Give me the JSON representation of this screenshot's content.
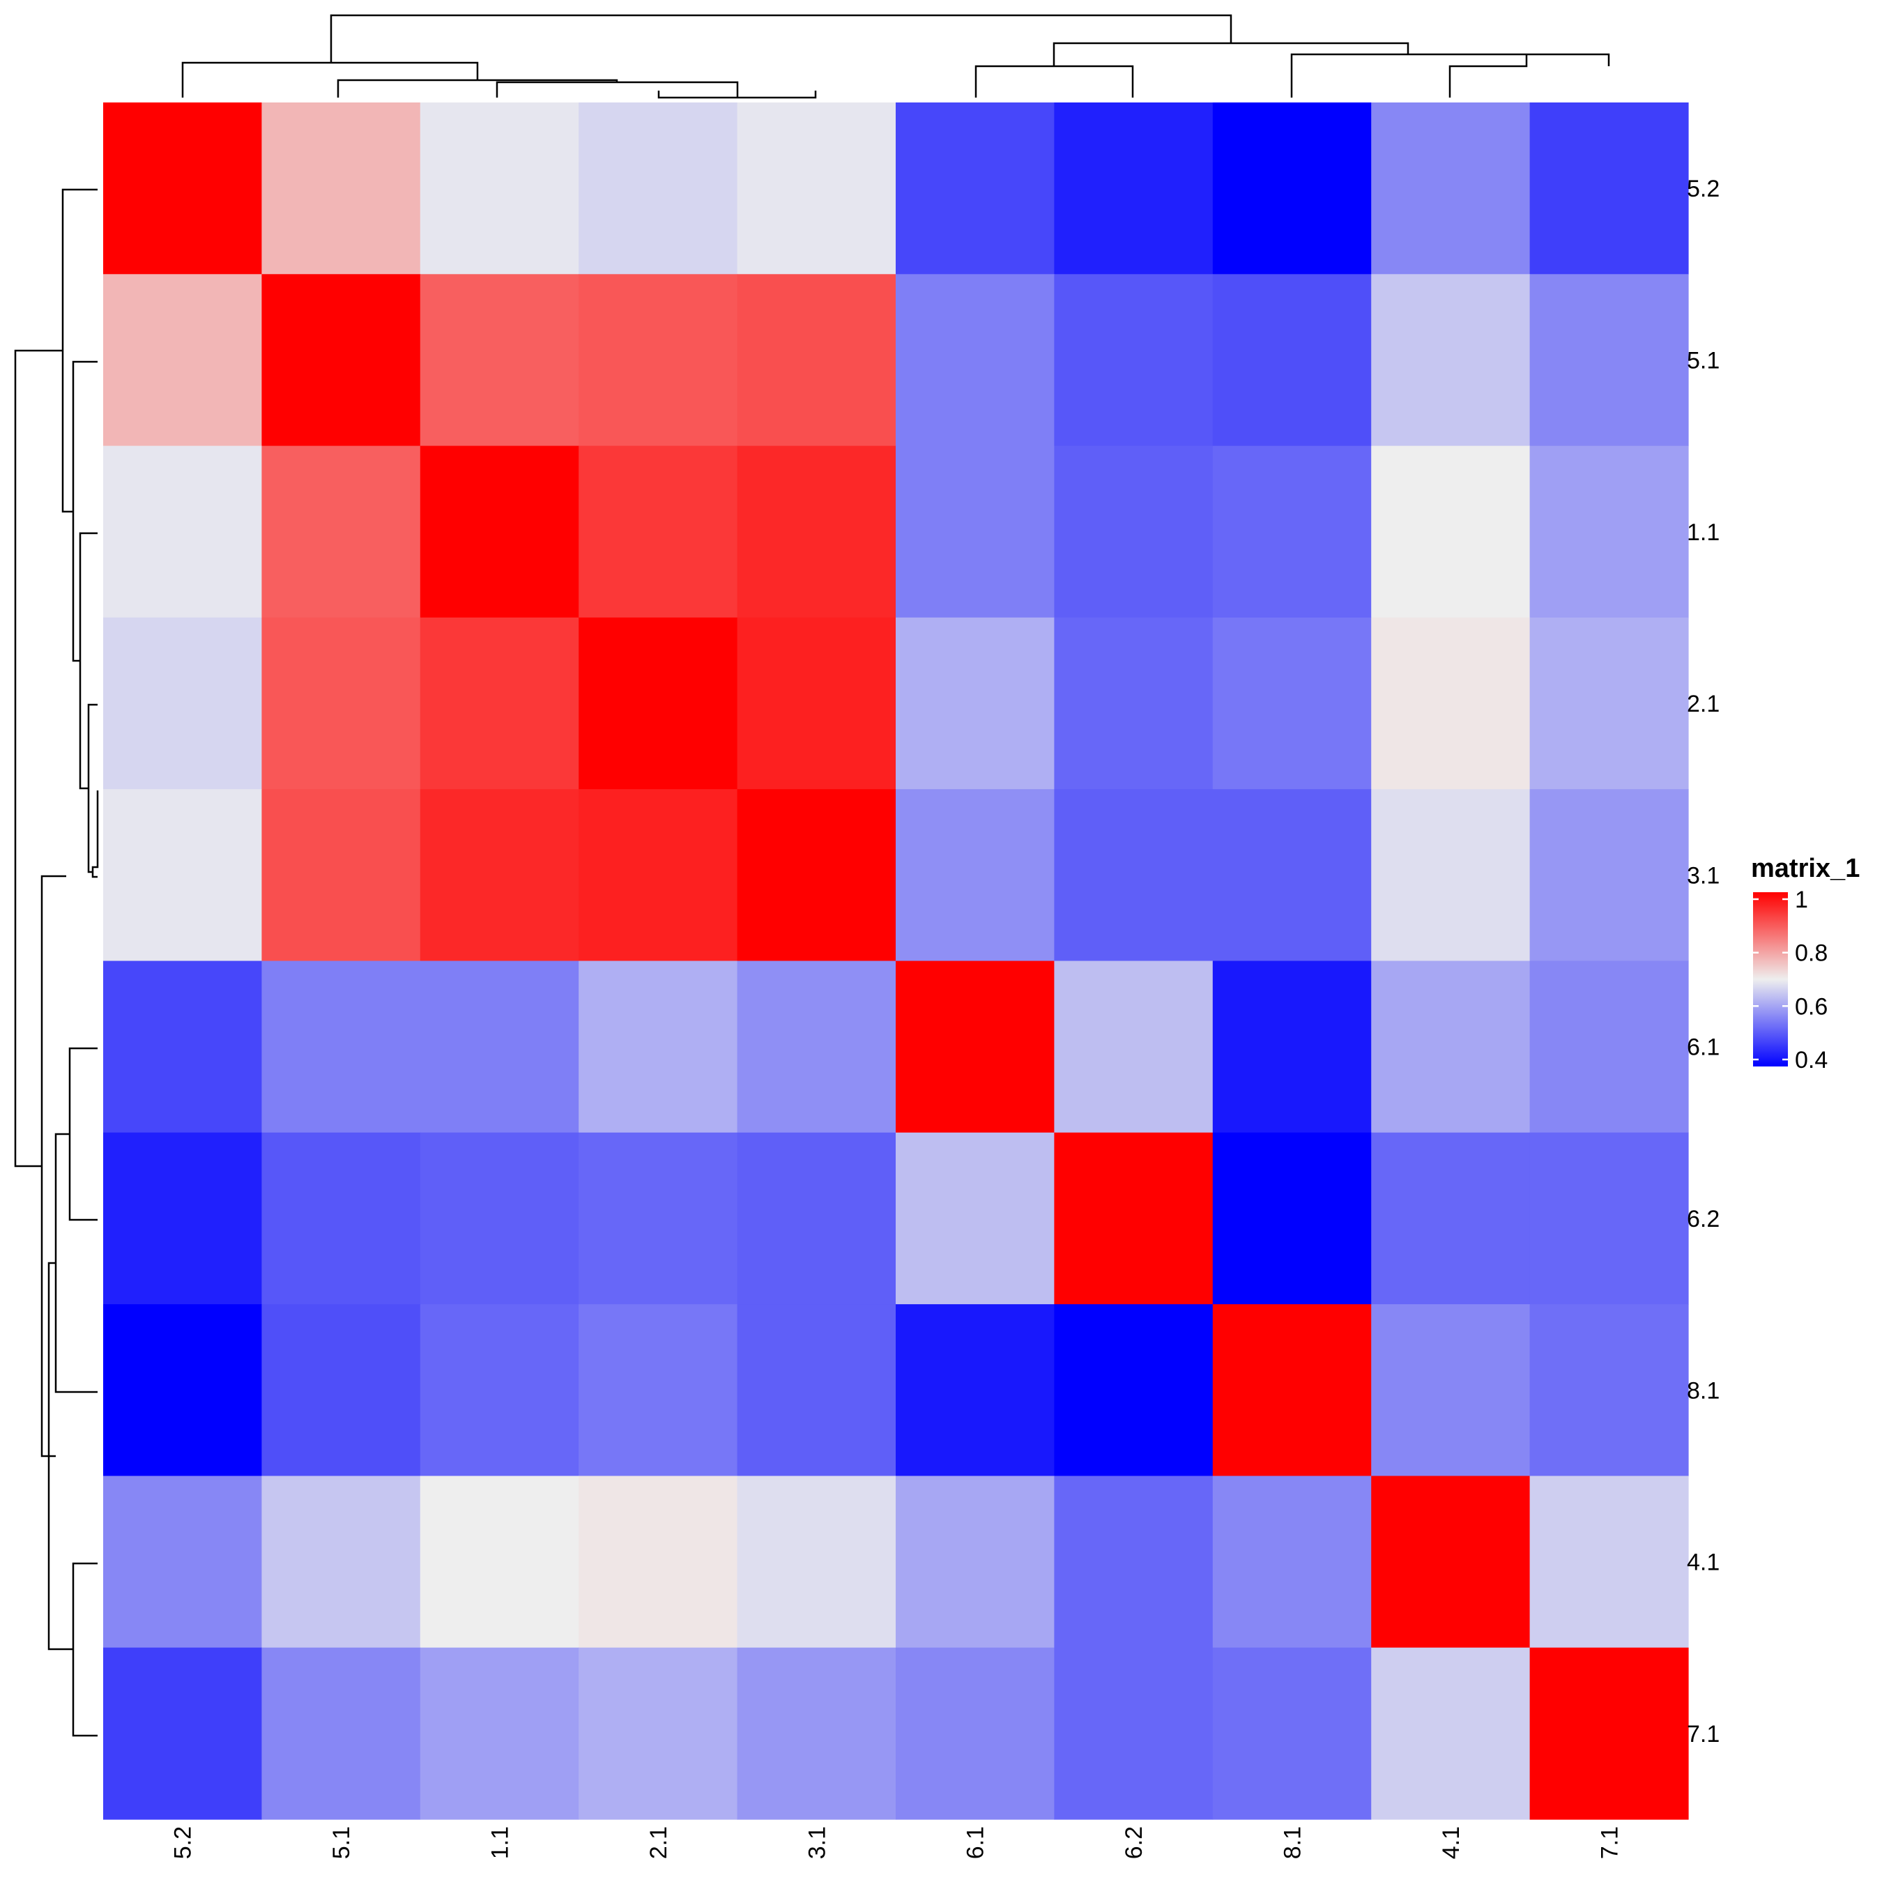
{
  "chart_data": {
    "type": "heatmap",
    "row_labels": [
      "5.2",
      "5.1",
      "1.1",
      "2.1",
      "3.1",
      "6.1",
      "6.2",
      "8.1",
      "4.1",
      "7.1"
    ],
    "col_labels": [
      "5.2",
      "5.1",
      "1.1",
      "2.1",
      "3.1",
      "6.1",
      "6.2",
      "8.1",
      "4.1",
      "7.1"
    ],
    "values": [
      [
        1.0,
        0.77,
        0.69,
        0.67,
        0.69,
        0.49,
        0.44,
        0.4,
        0.57,
        0.48
      ],
      [
        0.77,
        1.0,
        0.88,
        0.89,
        0.9,
        0.56,
        0.51,
        0.5,
        0.65,
        0.57
      ],
      [
        0.69,
        0.88,
        1.0,
        0.93,
        0.95,
        0.56,
        0.52,
        0.53,
        0.7,
        0.6
      ],
      [
        0.67,
        0.89,
        0.93,
        1.0,
        0.96,
        0.62,
        0.53,
        0.55,
        0.71,
        0.62
      ],
      [
        0.69,
        0.9,
        0.95,
        0.96,
        1.0,
        0.58,
        0.52,
        0.52,
        0.68,
        0.59
      ],
      [
        0.49,
        0.56,
        0.56,
        0.62,
        0.58,
        1.0,
        0.64,
        0.43,
        0.61,
        0.57
      ],
      [
        0.44,
        0.51,
        0.52,
        0.53,
        0.52,
        0.64,
        1.0,
        0.4,
        0.53,
        0.53
      ],
      [
        0.4,
        0.5,
        0.53,
        0.55,
        0.52,
        0.43,
        0.4,
        1.0,
        0.57,
        0.54
      ],
      [
        0.57,
        0.65,
        0.7,
        0.71,
        0.68,
        0.61,
        0.53,
        0.57,
        1.0,
        0.66
      ],
      [
        0.48,
        0.57,
        0.6,
        0.62,
        0.59,
        0.57,
        0.53,
        0.54,
        0.66,
        1.0
      ]
    ],
    "color_scale": {
      "low": "#0000FF",
      "mid": "#EEEEEE",
      "high": "#FF0000",
      "domain": [
        0.4,
        0.7,
        1.0
      ]
    },
    "legend": {
      "title": "matrix_1",
      "ticks": [
        "1",
        "0.8",
        "0.6",
        "0.4"
      ],
      "tick_values": [
        1.0,
        0.8,
        0.6,
        0.4
      ],
      "placement": "right"
    },
    "row_dendrogram": true,
    "col_dendrogram": true
  }
}
